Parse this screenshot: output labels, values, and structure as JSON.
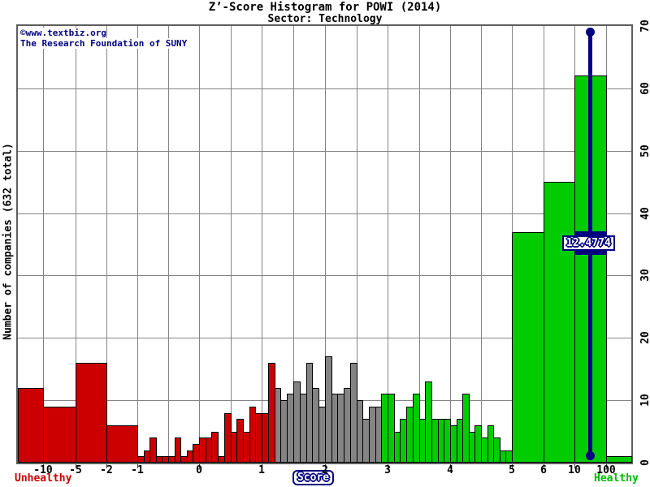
{
  "chart_data": {
    "type": "bar",
    "title": "Z’-Score Histogram for POWI (2014)",
    "subtitle": "Sector: Technology",
    "xlabel": "Score",
    "ylabel": "Number of companies (632 total)",
    "total_companies": 632,
    "watermark": [
      "©www.textbiz.org",
      "The Research Foundation of SUNY"
    ],
    "zone_labels": {
      "left": "Unhealthy",
      "right": "Healthy"
    },
    "ylim": [
      0,
      70
    ],
    "y_ticks": [
      0,
      10,
      20,
      30,
      40,
      50,
      60,
      70
    ],
    "y_tick_side": "right",
    "grid": true,
    "x_ticks": [
      {
        "value": -10,
        "label": "-10"
      },
      {
        "value": -5,
        "label": "-5"
      },
      {
        "value": -2,
        "label": "-2"
      },
      {
        "value": -1,
        "label": "-1"
      },
      {
        "value": 0,
        "label": "0"
      },
      {
        "value": 1,
        "label": "1"
      },
      {
        "value": 2,
        "label": "2"
      },
      {
        "value": 3,
        "label": "3"
      },
      {
        "value": 4,
        "label": "4"
      },
      {
        "value": 5,
        "label": "5"
      },
      {
        "value": 6,
        "label": "6"
      },
      {
        "value": 10,
        "label": "10"
      },
      {
        "value": 100,
        "label": "100"
      }
    ],
    "x_minor_gridlines": [
      -0.5,
      0.5,
      1.5,
      2.5,
      3.5,
      4.5
    ],
    "colors": {
      "red": "#cc0000",
      "gray": "#848484",
      "green": "#00cc00",
      "navy": "#000080",
      "grid": "#848484",
      "bar_border": "#000000"
    },
    "bar_groups": [
      {
        "zone": "red",
        "bars": [
          [
            "min",
            -10,
            12
          ],
          [
            -10,
            -5,
            9
          ],
          [
            -5,
            -2,
            16
          ],
          [
            -2,
            -1,
            6
          ]
        ]
      },
      {
        "zone": "red",
        "start": -1.0,
        "step": 0.1,
        "counts": [
          1,
          2,
          4,
          1,
          1,
          1,
          4,
          1,
          2,
          3
        ]
      },
      {
        "zone": "red",
        "start": 0.0,
        "step": 0.1,
        "counts": [
          4,
          4,
          5,
          1,
          8,
          5,
          7,
          5,
          9,
          8,
          8,
          16
        ]
      },
      {
        "zone": "gray",
        "start": 1.2,
        "step": 0.1,
        "counts": [
          12,
          10,
          11,
          13,
          11,
          16,
          12,
          9,
          17,
          11,
          11,
          12,
          16,
          10,
          7,
          9,
          9
        ]
      },
      {
        "zone": "green",
        "start": 2.9,
        "step": 0.1,
        "counts": [
          11,
          11,
          5,
          7,
          9,
          11,
          7,
          13,
          7,
          7,
          7,
          6,
          7,
          11,
          5,
          6,
          4,
          6,
          4,
          2,
          2
        ]
      },
      {
        "zone": "green",
        "bars": [
          [
            5,
            6,
            37
          ],
          [
            6,
            10,
            45
          ],
          [
            10,
            100,
            62
          ],
          [
            100,
            "max",
            1
          ]
        ]
      }
    ],
    "marker": {
      "value": 12.4774,
      "label": "12.4774"
    }
  }
}
